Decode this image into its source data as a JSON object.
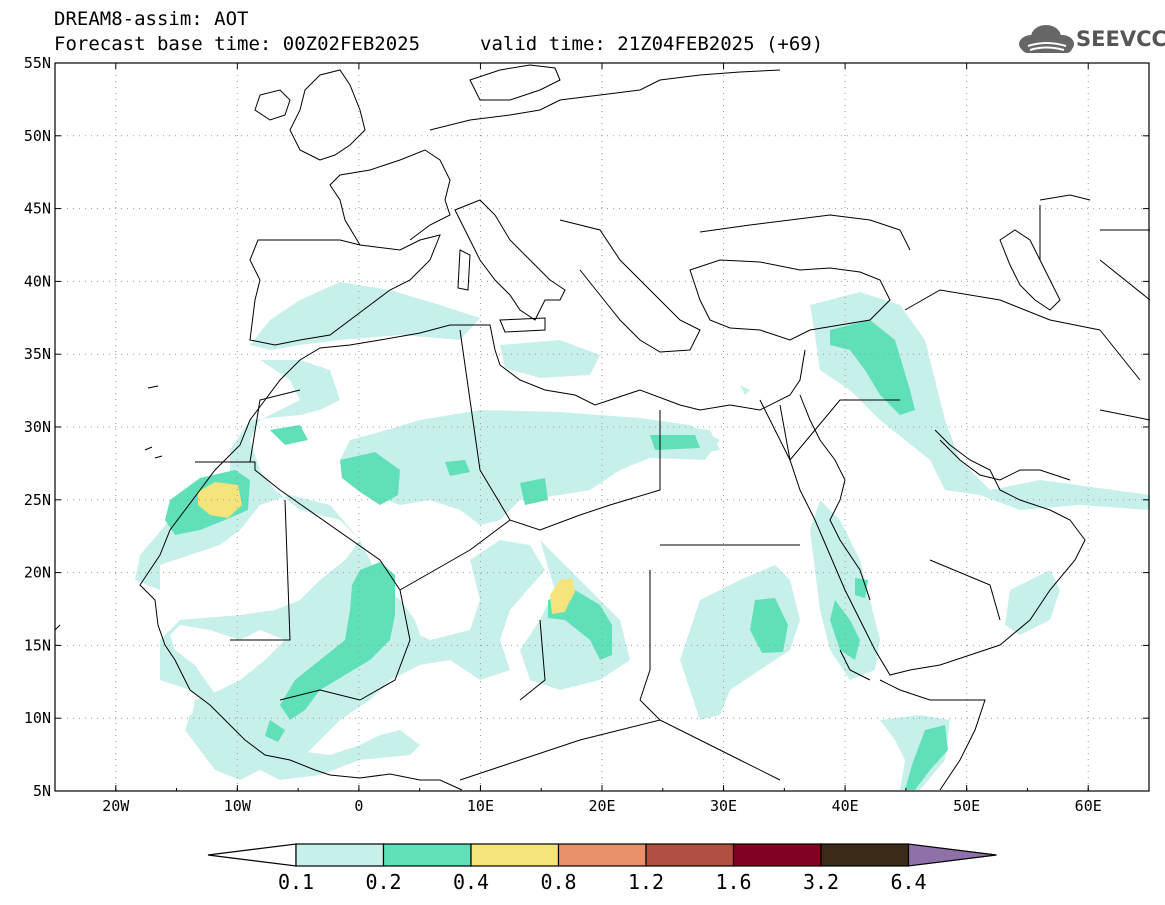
{
  "header": {
    "title": "DREAM8-assim: AOT",
    "base_time": "Forecast base time: 00Z02FEB2025",
    "valid_time": "valid time: 21Z04FEB2025 (+69)"
  },
  "logo": {
    "text": "SEEVCCC",
    "icon": "cloud-logo-icon"
  },
  "map": {
    "lon_range": [
      -25,
      65
    ],
    "lat_range": [
      5,
      55
    ],
    "lat_ticks": [
      "55N",
      "50N",
      "45N",
      "40N",
      "35N",
      "30N",
      "25N",
      "20N",
      "15N",
      "10N",
      "5N"
    ],
    "lon_ticks": [
      "20W",
      "10W",
      "0",
      "10E",
      "20E",
      "30E",
      "40E",
      "50E",
      "60E"
    ],
    "grid": "dotted"
  },
  "colorbar": {
    "labels": [
      "0.1",
      "0.2",
      "0.4",
      "0.8",
      "1.2",
      "1.6",
      "3.2",
      "6.4"
    ],
    "colors": [
      "#c8f0ea",
      "#5fe0b8",
      "#f5e47c",
      "#e8906a",
      "#b05040",
      "#800020",
      "#3a2a18"
    ],
    "extend_low_color": "#ffffff",
    "extend_high_color": "#9070a8"
  }
}
